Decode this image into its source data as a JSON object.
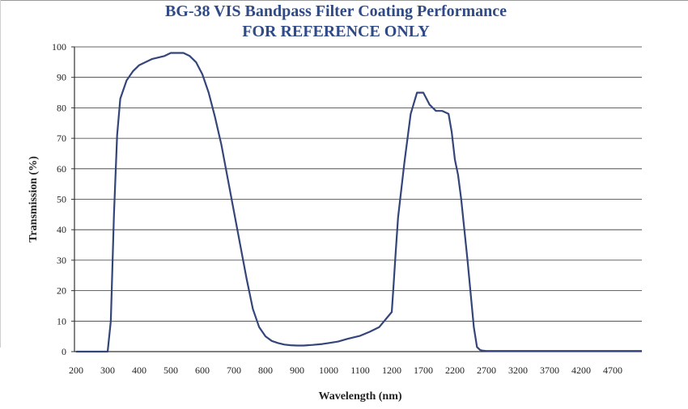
{
  "chart_data": {
    "type": "line",
    "title": "BG-38 VIS Bandpass Filter Coating Performance",
    "subtitle": "FOR REFERENCE ONLY",
    "xlabel": "Wavelength (nm)",
    "ylabel": "Transmission (%)",
    "ylim": [
      0,
      100
    ],
    "yticks": [
      0,
      10,
      20,
      30,
      40,
      50,
      60,
      70,
      80,
      90,
      100
    ],
    "xtick_labels": [
      "200",
      "300",
      "400",
      "500",
      "600",
      "700",
      "800",
      "900",
      "1000",
      "1100",
      "1200",
      "1700",
      "2200",
      "2700",
      "3200",
      "3700",
      "4200",
      "4700"
    ],
    "x_scale_note": "piecewise: 100 nm steps from 200 to 1200, then 500 nm steps from 1200 to 4700",
    "grid": "horizontal",
    "line_color": "#34457a",
    "series": [
      {
        "x": [
          200,
          300,
          310,
          320,
          330,
          340,
          360,
          380,
          400,
          420,
          440,
          460,
          480,
          500,
          520,
          540,
          560,
          580,
          600,
          620,
          640,
          660,
          680,
          700,
          720,
          740,
          760,
          780,
          800,
          820,
          840,
          860,
          880,
          900,
          920,
          950,
          980,
          1000,
          1030,
          1060,
          1100,
          1130,
          1160,
          1200,
          1230,
          1260,
          1300,
          1400,
          1500,
          1600,
          1700,
          1800,
          1900,
          2000,
          2100,
          2150,
          2200,
          2250,
          2300,
          2400,
          2500,
          2550,
          2600,
          2650,
          2700,
          2750,
          2800,
          2850,
          2900,
          2950,
          3000,
          3200,
          3700,
          4200,
          4700,
          5200
        ],
        "y": [
          0,
          0,
          10,
          45,
          71,
          83,
          89,
          92,
          94,
          95,
          96,
          96.5,
          97,
          98,
          98,
          98,
          97,
          95,
          91,
          85,
          77,
          68,
          57,
          46,
          35,
          24,
          14,
          8,
          5,
          3.5,
          2.8,
          2.3,
          2.1,
          2.0,
          2.0,
          2.2,
          2.5,
          2.8,
          3.3,
          4.2,
          5.2,
          6.5,
          8.0,
          13,
          22,
          32,
          44,
          62,
          78,
          85,
          85,
          81,
          79,
          79,
          78,
          72,
          63,
          58,
          50,
          30,
          8,
          1.5,
          0.5,
          0.3,
          0.2,
          0.2,
          0.2,
          0.2,
          0.2,
          0.2,
          0.2,
          0.2,
          0.2,
          0.2,
          0.2,
          0.2
        ]
      }
    ]
  }
}
